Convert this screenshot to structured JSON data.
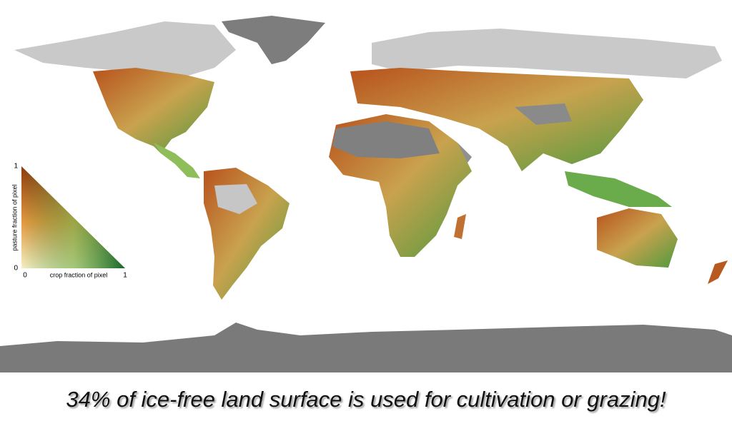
{
  "caption": "34% of ice-free land surface is used for cultivation or grazing!",
  "legend": {
    "y_label": "pasture fraction of pixel",
    "x_label": "crop fraction of pixel",
    "y_max": "1",
    "y_min": "0",
    "x_min": "0",
    "x_max": "1"
  }
}
